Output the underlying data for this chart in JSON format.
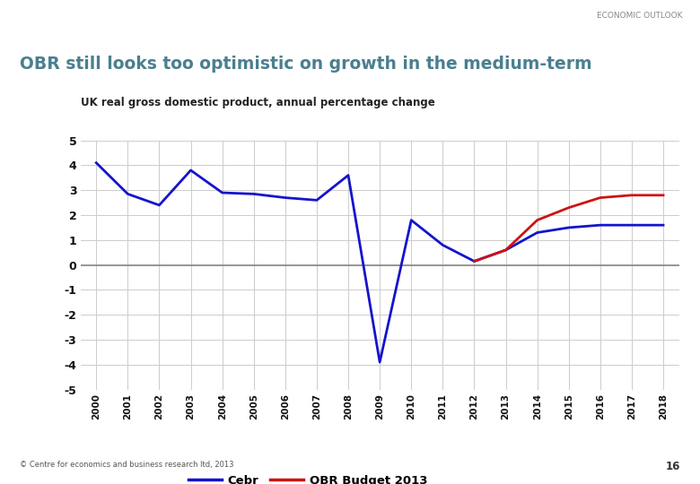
{
  "title_main": "OBR still looks too optimistic on growth in the medium-term",
  "subtitle": "UK real gross domestic product, annual percentage change",
  "header_label": "ECONOMIC OUTLOOK",
  "footer_text": "© Centre for economics and business research ltd, 2013",
  "page_number": "16",
  "cebr_x": [
    2000,
    2001,
    2002,
    2003,
    2004,
    2005,
    2006,
    2007,
    2008,
    2009,
    2010,
    2011,
    2012,
    2013,
    2014,
    2015,
    2016,
    2017,
    2018
  ],
  "cebr_y": [
    4.1,
    2.85,
    2.4,
    3.8,
    2.9,
    2.85,
    2.7,
    2.6,
    3.6,
    -3.9,
    1.8,
    0.8,
    0.15,
    0.6,
    1.3,
    1.5,
    1.6,
    1.6,
    1.6
  ],
  "obr_x": [
    2012,
    2013,
    2014,
    2015,
    2016,
    2017,
    2018
  ],
  "obr_y": [
    0.15,
    0.6,
    1.8,
    2.3,
    2.7,
    2.8,
    2.8
  ],
  "cebr_color": "#1414CC",
  "obr_color": "#CC1414",
  "ylim": [
    -5,
    5
  ],
  "yticks": [
    -5,
    -4,
    -3,
    -2,
    -1,
    0,
    1,
    2,
    3,
    4,
    5
  ],
  "xlim_left": 1999.5,
  "xlim_right": 2018.5,
  "background_color": "#ffffff",
  "grid_color": "#cccccc",
  "zero_line_color": "#888888",
  "title_color": "#4A7F8F",
  "header_color": "#888888",
  "teal_line_color": "#4A8FA0"
}
